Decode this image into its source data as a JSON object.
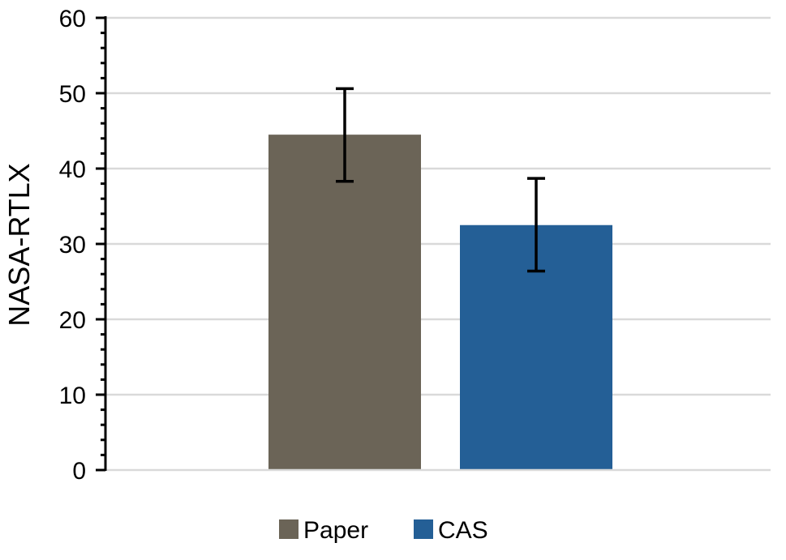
{
  "chart_data": {
    "type": "bar",
    "title": "",
    "xlabel": "",
    "ylabel": "NASA-RTLX",
    "ylim": [
      0,
      60
    ],
    "yticks": [
      0,
      10,
      20,
      30,
      40,
      50,
      60
    ],
    "grid": true,
    "legend_position": "bottom",
    "series": [
      {
        "name": "Paper",
        "value": 44.5,
        "error_low": 38.3,
        "error_high": 50.6,
        "color": "#6b6457"
      },
      {
        "name": "CAS",
        "value": 32.5,
        "error_low": 26.4,
        "error_high": 38.7,
        "color": "#245f96"
      }
    ]
  }
}
